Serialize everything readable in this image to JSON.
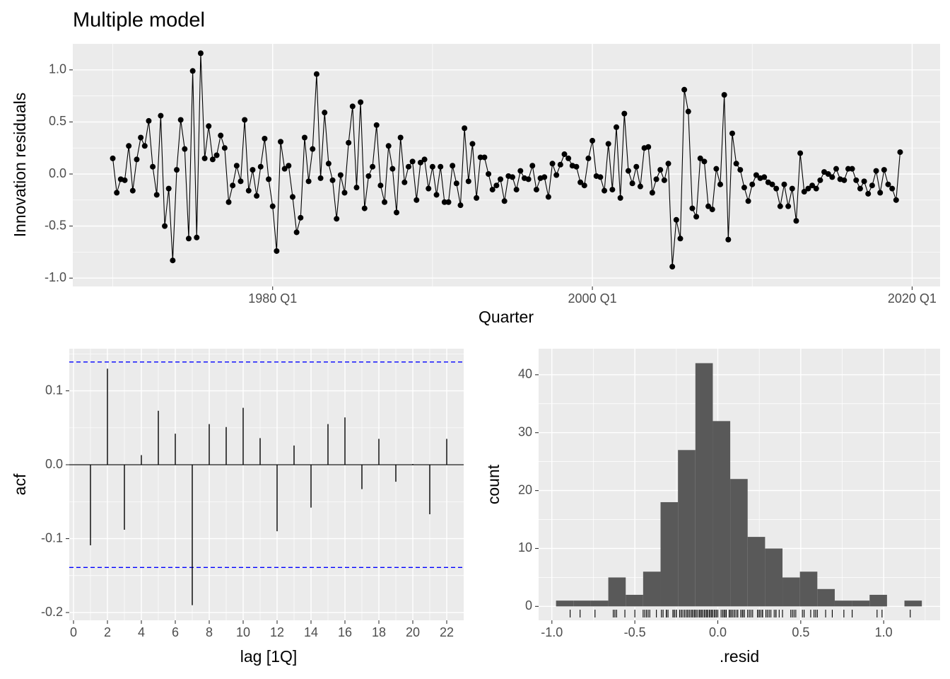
{
  "chart_data": [
    {
      "type": "line",
      "title": "Multiple model",
      "x_label": "Quarter",
      "y_label": "Innovation residuals",
      "color": "#000000",
      "x": [
        "1970 Q1",
        "1970 Q2",
        "1970 Q3",
        "1970 Q4",
        "1971 Q1",
        "1971 Q2",
        "1971 Q3",
        "1971 Q4",
        "1972 Q1",
        "1972 Q2",
        "1972 Q3",
        "1972 Q4",
        "1973 Q1",
        "1973 Q2",
        "1973 Q3",
        "1973 Q4",
        "1974 Q1",
        "1974 Q2",
        "1974 Q3",
        "1974 Q4",
        "1975 Q1",
        "1975 Q2",
        "1975 Q3",
        "1975 Q4",
        "1976 Q1",
        "1976 Q2",
        "1976 Q3",
        "1976 Q4",
        "1977 Q1",
        "1977 Q2",
        "1977 Q3",
        "1977 Q4",
        "1978 Q1",
        "1978 Q2",
        "1978 Q3",
        "1978 Q4",
        "1979 Q1",
        "1979 Q2",
        "1979 Q3",
        "1979 Q4",
        "1980 Q1",
        "1980 Q2",
        "1980 Q3",
        "1980 Q4",
        "1981 Q1",
        "1981 Q2",
        "1981 Q3",
        "1981 Q4",
        "1982 Q1",
        "1982 Q2",
        "1982 Q3",
        "1982 Q4",
        "1983 Q1",
        "1983 Q2",
        "1983 Q3",
        "1983 Q4",
        "1984 Q1",
        "1984 Q2",
        "1984 Q3",
        "1984 Q4",
        "1985 Q1",
        "1985 Q2",
        "1985 Q3",
        "1985 Q4",
        "1986 Q1",
        "1986 Q2",
        "1986 Q3",
        "1986 Q4",
        "1987 Q1",
        "1987 Q2",
        "1987 Q3",
        "1987 Q4",
        "1988 Q1",
        "1988 Q2",
        "1988 Q3",
        "1988 Q4",
        "1989 Q1",
        "1989 Q2",
        "1989 Q3",
        "1989 Q4",
        "1990 Q1",
        "1990 Q2",
        "1990 Q3",
        "1990 Q4",
        "1991 Q1",
        "1991 Q2",
        "1991 Q3",
        "1991 Q4",
        "1992 Q1",
        "1992 Q2",
        "1992 Q3",
        "1992 Q4",
        "1993 Q1",
        "1993 Q2",
        "1993 Q3",
        "1993 Q4",
        "1994 Q1",
        "1994 Q2",
        "1994 Q3",
        "1994 Q4",
        "1995 Q1",
        "1995 Q2",
        "1995 Q3",
        "1995 Q4",
        "1996 Q1",
        "1996 Q2",
        "1996 Q3",
        "1996 Q4",
        "1997 Q1",
        "1997 Q2",
        "1997 Q3",
        "1997 Q4",
        "1998 Q1",
        "1998 Q2",
        "1998 Q3",
        "1998 Q4",
        "1999 Q1",
        "1999 Q2",
        "1999 Q3",
        "1999 Q4",
        "2000 Q1",
        "2000 Q2",
        "2000 Q3",
        "2000 Q4",
        "2001 Q1",
        "2001 Q2",
        "2001 Q3",
        "2001 Q4",
        "2002 Q1",
        "2002 Q2",
        "2002 Q3",
        "2002 Q4",
        "2003 Q1",
        "2003 Q2",
        "2003 Q3",
        "2003 Q4",
        "2004 Q1",
        "2004 Q2",
        "2004 Q3",
        "2004 Q4",
        "2005 Q1",
        "2005 Q2",
        "2005 Q3",
        "2005 Q4",
        "2006 Q1",
        "2006 Q2",
        "2006 Q3",
        "2006 Q4",
        "2007 Q1",
        "2007 Q2",
        "2007 Q3",
        "2007 Q4",
        "2008 Q1",
        "2008 Q2",
        "2008 Q3",
        "2008 Q4",
        "2009 Q1",
        "2009 Q2",
        "2009 Q3",
        "2009 Q4",
        "2010 Q1",
        "2010 Q2",
        "2010 Q3",
        "2010 Q4",
        "2011 Q1",
        "2011 Q2",
        "2011 Q3",
        "2011 Q4",
        "2012 Q1",
        "2012 Q2",
        "2012 Q3",
        "2012 Q4",
        "2013 Q1",
        "2013 Q2",
        "2013 Q3",
        "2013 Q4",
        "2014 Q1",
        "2014 Q2",
        "2014 Q3",
        "2014 Q4",
        "2015 Q1",
        "2015 Q2",
        "2015 Q3",
        "2015 Q4",
        "2016 Q1",
        "2016 Q2",
        "2016 Q3",
        "2016 Q4",
        "2017 Q1",
        "2017 Q2",
        "2017 Q3",
        "2017 Q4",
        "2018 Q1",
        "2018 Q2",
        "2018 Q3",
        "2018 Q4",
        "2019 Q1",
        "2019 Q2"
      ],
      "values": [
        0.15,
        -0.18,
        -0.05,
        -0.06,
        0.27,
        -0.16,
        0.14,
        0.35,
        0.27,
        0.51,
        0.07,
        -0.2,
        0.56,
        -0.5,
        -0.14,
        -0.83,
        0.04,
        0.52,
        0.24,
        -0.62,
        0.99,
        -0.61,
        1.16,
        0.15,
        0.46,
        0.14,
        0.18,
        0.37,
        0.25,
        -0.27,
        -0.11,
        0.08,
        -0.07,
        0.52,
        -0.16,
        0.04,
        -0.21,
        0.07,
        0.34,
        -0.05,
        -0.31,
        -0.74,
        0.31,
        0.05,
        0.08,
        -0.22,
        -0.56,
        -0.42,
        0.35,
        -0.07,
        0.24,
        0.96,
        -0.04,
        0.59,
        0.1,
        -0.06,
        -0.43,
        -0.01,
        -0.18,
        0.3,
        0.65,
        -0.13,
        0.69,
        -0.33,
        -0.02,
        0.07,
        0.47,
        -0.11,
        -0.27,
        0.27,
        0.05,
        -0.37,
        0.35,
        -0.08,
        0.07,
        0.12,
        -0.25,
        0.11,
        0.14,
        -0.14,
        0.07,
        -0.2,
        0.07,
        -0.27,
        -0.27,
        0.08,
        -0.09,
        -0.3,
        0.44,
        -0.07,
        0.29,
        -0.23,
        0.16,
        0.16,
        0.0,
        -0.15,
        -0.11,
        -0.05,
        -0.26,
        -0.02,
        -0.03,
        -0.15,
        0.03,
        -0.04,
        -0.05,
        0.08,
        -0.15,
        -0.04,
        -0.03,
        -0.22,
        0.1,
        -0.01,
        0.09,
        0.19,
        0.15,
        0.08,
        0.07,
        -0.08,
        -0.11,
        0.15,
        0.32,
        -0.02,
        -0.03,
        -0.16,
        0.29,
        -0.15,
        0.45,
        -0.23,
        0.58,
        0.03,
        -0.09,
        0.07,
        -0.12,
        0.25,
        0.26,
        -0.18,
        -0.05,
        0.04,
        -0.06,
        0.1,
        -0.89,
        -0.44,
        -0.62,
        0.81,
        0.6,
        -0.33,
        -0.41,
        0.15,
        0.12,
        -0.31,
        -0.34,
        0.05,
        -0.1,
        0.76,
        -0.63,
        0.39,
        0.1,
        0.04,
        -0.13,
        -0.26,
        -0.1,
        -0.01,
        -0.04,
        -0.03,
        -0.08,
        -0.1,
        -0.14,
        -0.31,
        -0.1,
        -0.31,
        -0.14,
        -0.45,
        0.2,
        -0.17,
        -0.14,
        -0.11,
        -0.14,
        -0.06,
        0.02,
        0.0,
        -0.03,
        0.05,
        -0.05,
        -0.06,
        0.05,
        0.05,
        -0.06,
        -0.14,
        -0.07,
        -0.19,
        -0.11,
        0.03,
        -0.18,
        0.04,
        -0.1,
        -0.14,
        -0.25,
        0.21
      ],
      "xlim": [
        "1967 Q3",
        "2021 Q4"
      ],
      "xticks": [
        "1980 Q1",
        "2000 Q1",
        "2020 Q1"
      ],
      "ylim": [
        -1.08,
        1.25
      ],
      "yticks": [
        {
          "value": -1.0,
          "label": "-1.0"
        },
        -0.5,
        {
          "value": 0,
          "label": "0.0"
        },
        0.5,
        {
          "value": 1.0,
          "label": "1.0"
        }
      ],
      "grid": true
    },
    {
      "type": "acf",
      "x_label": "lag [1Q]",
      "y_label": "acf",
      "color": "#000000",
      "ci_color": "#0000ff",
      "categories": [
        1,
        2,
        3,
        4,
        5,
        6,
        7,
        8,
        9,
        10,
        11,
        12,
        13,
        14,
        15,
        16,
        17,
        18,
        19,
        20,
        21,
        22
      ],
      "values": [
        -0.109,
        0.13,
        -0.088,
        0.013,
        0.073,
        0.042,
        -0.19,
        0.055,
        0.051,
        0.077,
        0.036,
        -0.09,
        0.026,
        -0.058,
        0.055,
        0.064,
        -0.033,
        0.035,
        -0.023,
        0.001,
        -0.067,
        0.035
      ],
      "ci": [
        0.139,
        -0.139
      ],
      "xlim": [
        -0.25,
        23.0
      ],
      "xticks": [
        0,
        2,
        4,
        6,
        8,
        10,
        12,
        14,
        16,
        18,
        20,
        22
      ],
      "ylim": [
        -0.2105,
        0.157
      ],
      "yticks": [
        -0.2,
        -0.1,
        {
          "value": 0,
          "label": "0.0"
        },
        0.1
      ],
      "grid": true
    },
    {
      "type": "histogram",
      "x_label": ".resid",
      "y_label": "count",
      "color": "#595959",
      "bins": [
        -0.975,
        -0.87,
        -0.765,
        -0.66,
        -0.555,
        -0.45,
        -0.345,
        -0.24,
        -0.135,
        -0.03,
        0.075,
        0.18,
        0.285,
        0.39,
        0.495,
        0.6,
        0.705,
        0.81,
        0.915,
        1.02,
        1.125,
        1.23
      ],
      "values": [
        1,
        1,
        1,
        5,
        2,
        6,
        18,
        27,
        42,
        32,
        22,
        12,
        10,
        5,
        6,
        3,
        1,
        1,
        2,
        0,
        1
      ],
      "xlim": [
        -1.08,
        1.34
      ],
      "xticks": [
        {
          "value": -1.0,
          "label": "-1.0"
        },
        -0.5,
        {
          "value": 0,
          "label": "0.0"
        },
        0.5,
        {
          "value": 1.0,
          "label": "1.0"
        }
      ],
      "ylim": [
        -2.4,
        44.5
      ],
      "yticks": [
        0,
        10,
        20,
        30,
        40
      ],
      "grid": true
    }
  ]
}
